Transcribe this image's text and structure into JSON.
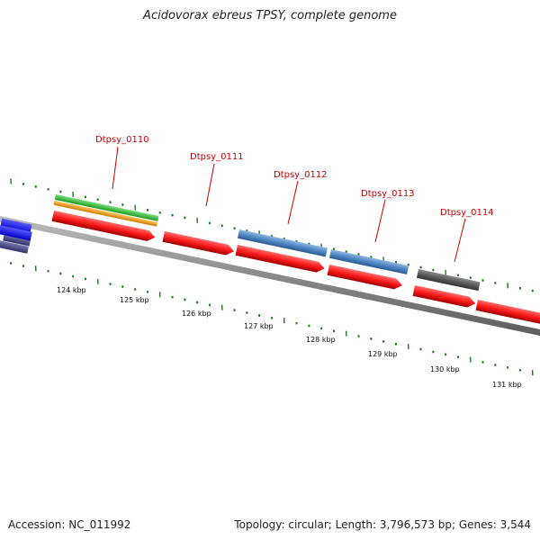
{
  "title": "Acidovorax ebreus TPSY, complete genome",
  "footer": {
    "accession": "Accession: NC_011992",
    "summary": "Topology: circular; Length: 3,796,573 bp; Genes: 3,544"
  },
  "genes": [
    {
      "label": "Dtpsy_0110"
    },
    {
      "label": "Dtpsy_0111"
    },
    {
      "label": "Dtpsy_0112"
    },
    {
      "label": "Dtpsy_0113"
    },
    {
      "label": "Dtpsy_0114"
    }
  ],
  "kbp_ticks": [
    "124 kbp",
    "125 kbp",
    "126 kbp",
    "127 kbp",
    "128 kbp",
    "129 kbp",
    "130 kbp",
    "131 kbp"
  ],
  "colors": {
    "cds": "#ff1a1a",
    "blue_feature": "#4f87c4",
    "green_feature": "#3cc43c",
    "orange_feature": "#f0a020",
    "gray_feature": "#5a5a5a",
    "strong_blue": "#1010ff",
    "purple_feature": "#4a4a8a",
    "tick": "#1a7a1a",
    "gene_label": "#cc0000"
  }
}
